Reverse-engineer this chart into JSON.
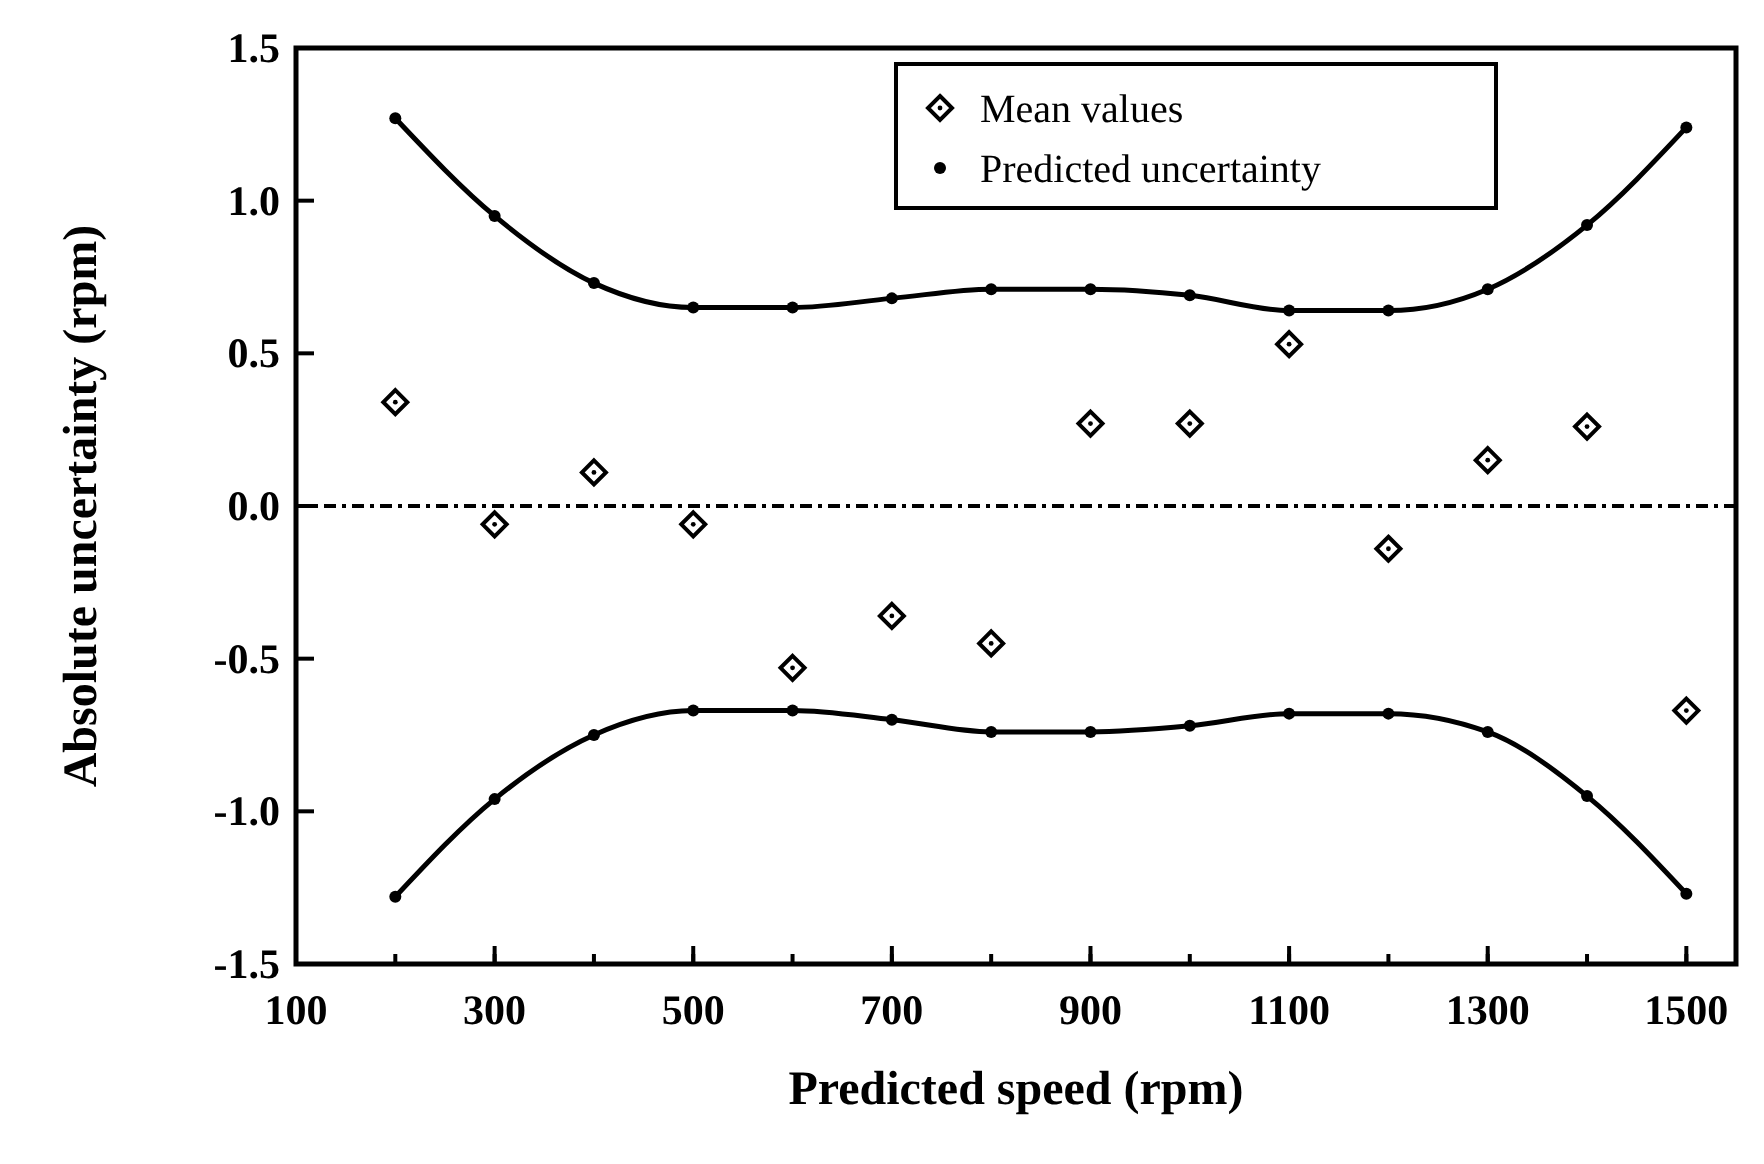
{
  "chart_data": {
    "type": "scatter",
    "xlabel": "Predicted speed (rpm)",
    "ylabel": "Absolute uncertainty (rpm)",
    "xlim": [
      100,
      1550
    ],
    "xticks": [
      100,
      300,
      500,
      700,
      900,
      1100,
      1300,
      1500
    ],
    "ylim": [
      -1.5,
      1.5
    ],
    "yticks": [
      {
        "value": -1.5,
        "label": "-1.5"
      },
      {
        "value": -1,
        "label": "-1.0"
      },
      {
        "value": -0.5,
        "label": "-0.5"
      },
      {
        "value": 0,
        "label": "0.0"
      },
      {
        "value": 0.5,
        "label": "0.5"
      },
      {
        "value": 1,
        "label": "1.0"
      },
      {
        "value": 1.5,
        "label": "1.5"
      }
    ],
    "x": [
      200,
      300,
      400,
      500,
      600,
      700,
      800,
      900,
      1000,
      1100,
      1200,
      1300,
      1400,
      1500
    ],
    "series": [
      {
        "name": "Mean values",
        "marker": "diamond",
        "color": "#000000",
        "values": [
          0.34,
          -0.06,
          0.11,
          -0.06,
          -0.53,
          -0.36,
          -0.45,
          0.27,
          0.27,
          0.53,
          -0.14,
          0.15,
          0.26,
          -0.67
        ]
      },
      {
        "name": "Predicted uncertainty",
        "type": "line",
        "marker": "circle",
        "color": "#000000",
        "values": [
          1.27,
          0.95,
          0.73,
          0.65,
          0.65,
          0.68,
          0.71,
          0.71,
          0.69,
          0.64,
          0.64,
          0.71,
          0.92,
          1.24
        ]
      },
      {
        "type": "line",
        "marker": "circle",
        "color": "#000000",
        "values": [
          -1.28,
          -0.96,
          -0.75,
          -0.67,
          -0.67,
          -0.7,
          -0.74,
          -0.74,
          -0.72,
          -0.68,
          -0.68,
          -0.74,
          -0.95,
          -1.27
        ]
      }
    ],
    "ref_lines": [
      {
        "axis": "y",
        "value": 0,
        "line_style": "dashdot",
        "color": "#000000"
      }
    ],
    "legend": "top",
    "grid": false
  }
}
